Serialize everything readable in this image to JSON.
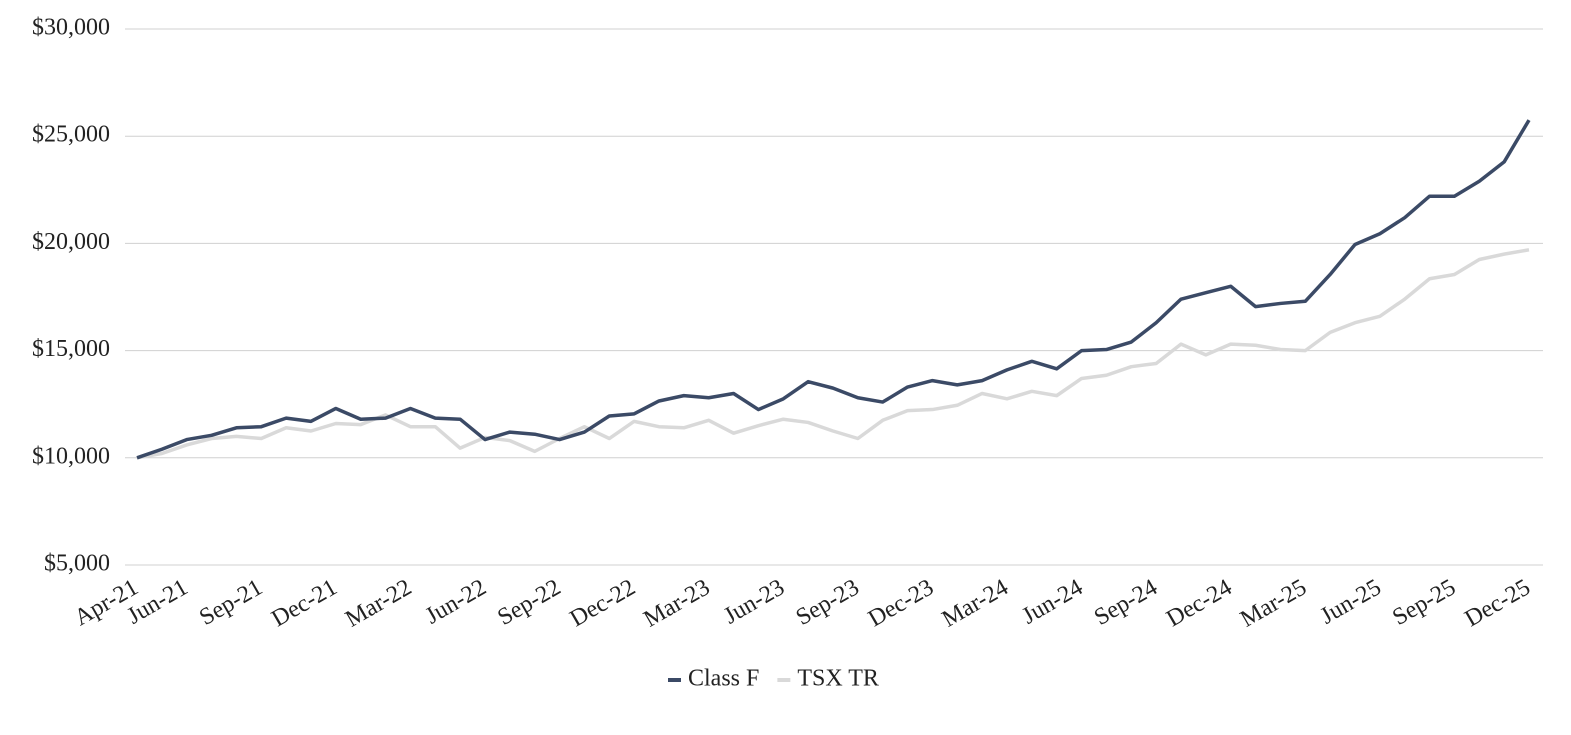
{
  "chart_data": {
    "type": "line",
    "categories": [
      "Apr-21",
      null,
      "Jun-21",
      null,
      null,
      "Sep-21",
      null,
      null,
      "Dec-21",
      null,
      null,
      "Mar-22",
      null,
      null,
      "Jun-22",
      null,
      null,
      "Sep-22",
      null,
      null,
      "Dec-22",
      null,
      null,
      "Mar-23",
      null,
      null,
      "Jun-23",
      null,
      null,
      "Sep-23",
      null,
      null,
      "Dec-23",
      null,
      null,
      "Mar-24",
      null,
      null,
      "Jun-24",
      null,
      null,
      "Sep-24",
      null,
      null,
      "Dec-24",
      null,
      null,
      "Mar-25",
      null,
      null,
      "Jun-25",
      null,
      null,
      "Sep-25",
      null,
      null,
      "Dec-25"
    ],
    "series": [
      {
        "name": "Class F",
        "color": "#3b4a66",
        "values": [
          10000,
          10400,
          10850,
          11050,
          11400,
          11450,
          11850,
          11700,
          12300,
          11800,
          11850,
          12300,
          11850,
          11800,
          10850,
          11200,
          11100,
          10850,
          11200,
          11950,
          12050,
          12650,
          12900,
          12800,
          13000,
          12250,
          12750,
          13550,
          13250,
          12800,
          12600,
          13300,
          13600,
          13400,
          13600,
          14100,
          14500,
          14150,
          15000,
          15050,
          15400,
          16300,
          17400,
          17700,
          18000,
          17050,
          17200,
          17300,
          18550,
          19950,
          20450,
          21200,
          22200,
          22200,
          22900,
          23800,
          25750
        ]
      },
      {
        "name": "TSX TR",
        "color": "#d9d9d9",
        "values": [
          10000,
          10200,
          10600,
          10900,
          11000,
          10900,
          11400,
          11250,
          11600,
          11550,
          12000,
          11450,
          11450,
          10450,
          10950,
          10800,
          10300,
          10900,
          11450,
          10900,
          11700,
          11450,
          11400,
          11750,
          11150,
          11500,
          11800,
          11650,
          11250,
          10900,
          11750,
          12200,
          12250,
          12450,
          13000,
          12750,
          13100,
          12900,
          13700,
          13850,
          14250,
          14400,
          15300,
          14800,
          15300,
          15250,
          15050,
          15000,
          15850,
          16300,
          16600,
          17400,
          18350,
          18550,
          19250,
          19500,
          19700
        ]
      }
    ],
    "ylim": [
      5000,
      30000
    ],
    "yticks": [
      {
        "value": 5000,
        "label": "$5,000"
      },
      {
        "value": 10000,
        "label": "$10,000"
      },
      {
        "value": 15000,
        "label": "$15,000"
      },
      {
        "value": 20000,
        "label": "$20,000"
      },
      {
        "value": 25000,
        "label": "$25,000"
      },
      {
        "value": 30000,
        "label": "$30,000"
      }
    ],
    "grid": true,
    "legend": "bottom"
  }
}
